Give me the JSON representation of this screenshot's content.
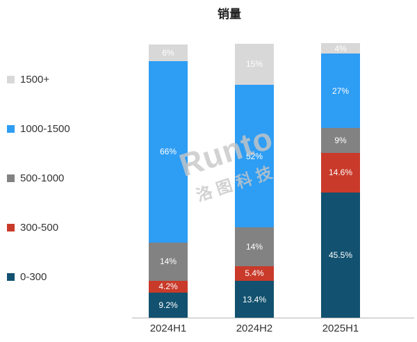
{
  "title": "销量",
  "watermark": {
    "brand": "Runto",
    "cn": "洛图科技"
  },
  "chart_data": {
    "type": "bar",
    "stacked": true,
    "value_unit": "%",
    "title": "销量",
    "categories": [
      "2024H1",
      "2024H2",
      "2025H1"
    ],
    "series": [
      {
        "name": "1500+",
        "color": "#d8d8d8",
        "values": [
          6,
          15,
          4
        ]
      },
      {
        "name": "1000-1500",
        "color": "#2e9df4",
        "values": [
          66,
          52,
          27
        ]
      },
      {
        "name": "500-1000",
        "color": "#828282",
        "values": [
          14,
          14,
          9
        ]
      },
      {
        "name": "300-500",
        "color": "#c93a2a",
        "values": [
          4.2,
          5.4,
          14.6
        ]
      },
      {
        "name": "0-300",
        "color": "#12516f",
        "values": [
          9.2,
          13.4,
          45.5
        ]
      }
    ],
    "legend_position": "left",
    "grid": false,
    "ylim": [
      0,
      100
    ],
    "label_color": "#ffffff"
  }
}
